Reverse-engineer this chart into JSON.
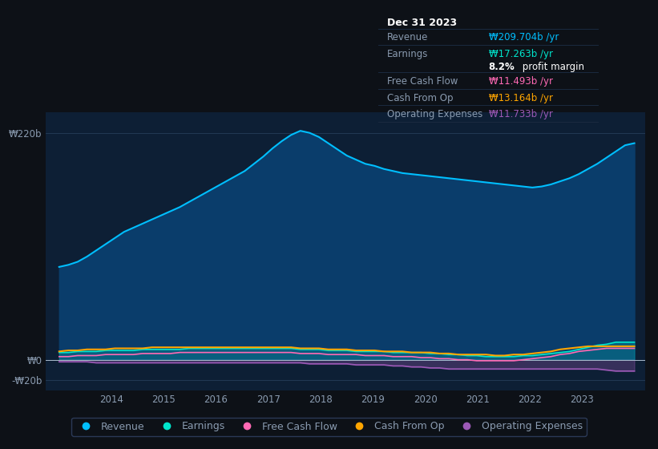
{
  "bg_color": "#0d1117",
  "plot_bg_color": "#0d1f35",
  "grid_color": "#253d5a",
  "text_color": "#8a9bb0",
  "title_color": "#ffffff",
  "ylabel_top": "₩220b",
  "ylabel_zero": "₩0",
  "ylabel_neg": "-₩20b",
  "x_ticks": [
    2014,
    2015,
    2016,
    2017,
    2018,
    2019,
    2020,
    2021,
    2022,
    2023
  ],
  "revenue": [
    90,
    92,
    95,
    100,
    106,
    112,
    118,
    124,
    128,
    132,
    136,
    140,
    144,
    148,
    153,
    158,
    163,
    168,
    173,
    178,
    183,
    190,
    197,
    205,
    212,
    218,
    222,
    220,
    216,
    210,
    204,
    198,
    194,
    190,
    188,
    185,
    183,
    181,
    180,
    179,
    178,
    177,
    176,
    175,
    174,
    173,
    172,
    171,
    170,
    169,
    168,
    167,
    168,
    170,
    173,
    176,
    180,
    185,
    190,
    196,
    202,
    208,
    210
  ],
  "earnings": [
    7,
    7,
    8,
    8,
    8,
    9,
    9,
    9,
    9,
    10,
    10,
    10,
    10,
    10,
    11,
    11,
    11,
    11,
    11,
    11,
    11,
    11,
    11,
    11,
    11,
    11,
    10,
    10,
    10,
    9,
    9,
    9,
    8,
    8,
    8,
    8,
    7,
    7,
    7,
    7,
    6,
    6,
    5,
    5,
    4,
    4,
    3,
    3,
    3,
    3,
    4,
    4,
    5,
    6,
    7,
    8,
    10,
    12,
    14,
    15,
    17,
    17,
    17
  ],
  "free_cash_flow": [
    3,
    3,
    4,
    4,
    4,
    5,
    5,
    5,
    5,
    6,
    6,
    6,
    6,
    7,
    7,
    7,
    7,
    7,
    7,
    7,
    7,
    7,
    7,
    7,
    7,
    7,
    6,
    6,
    6,
    5,
    5,
    5,
    5,
    4,
    4,
    4,
    3,
    3,
    3,
    2,
    2,
    1,
    1,
    0,
    0,
    -1,
    -1,
    -1,
    -1,
    -1,
    0,
    1,
    2,
    3,
    5,
    6,
    8,
    9,
    10,
    11,
    11,
    11,
    11
  ],
  "cash_from_op": [
    8,
    9,
    9,
    10,
    10,
    10,
    11,
    11,
    11,
    11,
    12,
    12,
    12,
    12,
    12,
    12,
    12,
    12,
    12,
    12,
    12,
    12,
    12,
    12,
    12,
    12,
    11,
    11,
    11,
    10,
    10,
    10,
    9,
    9,
    9,
    8,
    8,
    8,
    7,
    7,
    7,
    6,
    6,
    5,
    5,
    5,
    5,
    4,
    4,
    5,
    5,
    6,
    7,
    8,
    10,
    11,
    12,
    13,
    13,
    13,
    13,
    13,
    13
  ],
  "op_expenses": [
    -2,
    -2,
    -2,
    -2,
    -3,
    -3,
    -3,
    -3,
    -3,
    -3,
    -3,
    -3,
    -3,
    -3,
    -3,
    -3,
    -3,
    -3,
    -3,
    -3,
    -3,
    -3,
    -3,
    -3,
    -3,
    -3,
    -3,
    -4,
    -4,
    -4,
    -4,
    -4,
    -5,
    -5,
    -5,
    -5,
    -6,
    -6,
    -7,
    -7,
    -8,
    -8,
    -9,
    -9,
    -9,
    -9,
    -9,
    -9,
    -9,
    -9,
    -9,
    -9,
    -9,
    -9,
    -9,
    -9,
    -9,
    -9,
    -9,
    -10,
    -11,
    -11,
    -11
  ],
  "revenue_color": "#00bfff",
  "revenue_fill": "#0a3d6b",
  "earnings_color": "#00e5cc",
  "fcf_color": "#ff69b4",
  "cashop_color": "#ffa500",
  "opex_color": "#9b59b6",
  "legend_labels": [
    "Revenue",
    "Earnings",
    "Free Cash Flow",
    "Cash From Op",
    "Operating Expenses"
  ],
  "legend_colors": [
    "#00bfff",
    "#00e5cc",
    "#ff69b4",
    "#ffa500",
    "#9b59b6"
  ],
  "ylim_min": -30,
  "ylim_max": 240,
  "xlim_min": 2012.75,
  "xlim_max": 2024.2,
  "tooltip_title": "Dec 31 2023",
  "tooltip_revenue_val": "₩209.704b /yr",
  "tooltip_earnings_val": "₩17.263b /yr",
  "tooltip_margin": "8.2%",
  "tooltip_margin_text": " profit margin",
  "tooltip_fcf_val": "₩11.493b /yr",
  "tooltip_cashop_val": "₩13.164b /yr",
  "tooltip_opex_val": "₩11.733b /yr"
}
